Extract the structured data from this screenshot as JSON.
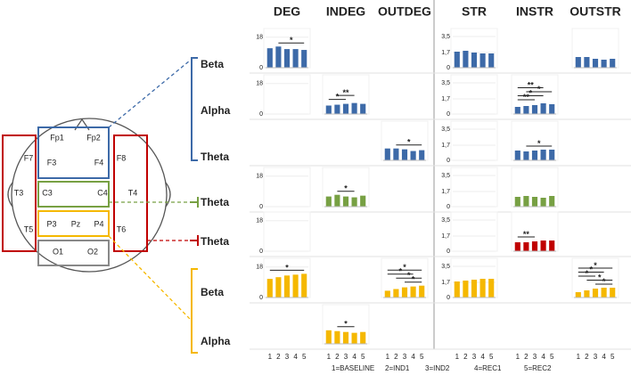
{
  "columns": [
    "DEG",
    "INDEG",
    "OUTDEG",
    "STR",
    "INSTR",
    "OUTSTR"
  ],
  "bands": [
    {
      "label": "Beta"
    },
    {
      "label": "Alpha"
    },
    {
      "label": "Theta"
    },
    {
      "label": "Theta"
    },
    {
      "label": "Theta"
    },
    {
      "label": "Beta"
    },
    {
      "label": "Alpha"
    }
  ],
  "x_categories": [
    "1",
    "2",
    "3",
    "4",
    "5"
  ],
  "legend": [
    "1=BASELINE",
    "2=IND1",
    "3=IND2",
    "4=REC1",
    "5=REC2"
  ],
  "electrodes": [
    "Fp1",
    "Fp2",
    "F7",
    "F3",
    "F4",
    "F8",
    "T3",
    "C3",
    "C4",
    "T4",
    "T5",
    "P3",
    "Pz",
    "P4",
    "T6",
    "O1",
    "O2"
  ],
  "chart_data": [
    {
      "type": "bar",
      "color": "#3d6aa8",
      "values": [
        11.5,
        12.5,
        11,
        11,
        10.5
      ],
      "ylim": [
        0,
        20
      ],
      "yticks": [
        0,
        18
      ],
      "sig": [
        {
          "label": "*",
          "from": 2,
          "to": 5
        }
      ]
    },
    null,
    null,
    {
      "type": "bar",
      "color": "#3d6aa8",
      "values": [
        1.8,
        1.9,
        1.7,
        1.6,
        1.6
      ],
      "ylim": [
        0,
        3.8
      ],
      "yticks": [
        0,
        {
          "value": 1.7,
          "label": "1,7"
        },
        {
          "value": 3.5,
          "label": "3,5"
        }
      ]
    },
    null,
    {
      "type": "bar",
      "color": "#3d6aa8",
      "values": [
        1.2,
        1.2,
        1.0,
        0.9,
        1.0
      ],
      "ylim": [
        0,
        3.8
      ]
    },
    {
      "type": "bar",
      "ylim": [
        0,
        20
      ],
      "yticks": [
        0,
        18
      ]
    },
    {
      "type": "bar",
      "color": "#3d6aa8",
      "values": [
        5,
        5.5,
        6,
        6.5,
        6
      ],
      "ylim": [
        0,
        20
      ],
      "sig": [
        {
          "label": "**",
          "from": 2,
          "to": 4
        },
        {
          "label": "*",
          "from": 1,
          "to": 3
        }
      ]
    },
    null,
    {
      "type": "bar",
      "ylim": [
        0,
        3.8
      ],
      "yticks": [
        0,
        {
          "value": 1.7,
          "label": "1,7"
        },
        {
          "value": 3.5,
          "label": "3,5"
        }
      ]
    },
    {
      "type": "bar",
      "color": "#3d6aa8",
      "values": [
        0.8,
        0.9,
        1.0,
        1.2,
        1.1
      ],
      "ylim": [
        0,
        3.8
      ],
      "sig": [
        {
          "label": "**",
          "from": 1,
          "to": 4
        },
        {
          "label": "*",
          "from": 2,
          "to": 5
        },
        {
          "label": "*",
          "from": 1,
          "to": 4
        },
        {
          "label": "**",
          "from": 1,
          "to": 3
        }
      ]
    },
    null,
    null,
    null,
    {
      "type": "bar",
      "color": "#3d6aa8",
      "values": [
        7,
        7,
        6.5,
        5.5,
        6
      ],
      "ylim": [
        0,
        20
      ],
      "sig": [
        {
          "label": "*",
          "from": 2,
          "to": 5
        }
      ]
    },
    {
      "type": "bar",
      "ylim": [
        0,
        3.8
      ],
      "yticks": [
        0,
        {
          "value": 1.7,
          "label": "1,7"
        },
        {
          "value": 3.5,
          "label": "3,5"
        }
      ]
    },
    {
      "type": "bar",
      "color": "#3d6aa8",
      "values": [
        1.1,
        1.0,
        1.1,
        1.2,
        1.2
      ],
      "ylim": [
        0,
        3.8
      ],
      "sig": [
        {
          "label": "*",
          "from": 2,
          "to": 5
        }
      ]
    },
    null,
    {
      "type": "bar",
      "ylim": [
        0,
        20
      ],
      "yticks": [
        0,
        18
      ]
    },
    {
      "type": "bar",
      "color": "#77a043",
      "values": [
        6,
        7,
        6,
        5.5,
        6.5
      ],
      "ylim": [
        0,
        20
      ],
      "sig": [
        {
          "label": "*",
          "from": 2,
          "to": 4
        }
      ]
    },
    null,
    {
      "type": "bar",
      "ylim": [
        0,
        3.8
      ],
      "yticks": [
        0,
        {
          "value": 1.7,
          "label": "1,7"
        },
        {
          "value": 3.5,
          "label": "3,5"
        }
      ]
    },
    {
      "type": "bar",
      "color": "#77a043",
      "values": [
        1.1,
        1.2,
        1.1,
        1.0,
        1.2
      ],
      "ylim": [
        0,
        3.8
      ]
    },
    null,
    {
      "type": "bar",
      "ylim": [
        0,
        20
      ],
      "yticks": [
        0,
        18
      ]
    },
    null,
    null,
    {
      "type": "bar",
      "ylim": [
        0,
        3.8
      ],
      "yticks": [
        0,
        {
          "value": 1.7,
          "label": "1,7"
        },
        {
          "value": 3.5,
          "label": "3,5"
        }
      ]
    },
    {
      "type": "bar",
      "color": "#c00000",
      "values": [
        1.0,
        1.0,
        1.1,
        1.2,
        1.2
      ],
      "ylim": [
        0,
        3.8
      ],
      "sig": [
        {
          "label": "**",
          "from": 1,
          "to": 3
        }
      ]
    },
    null,
    {
      "type": "bar",
      "color": "#f5b800",
      "values": [
        11,
        12,
        13,
        13.5,
        14
      ],
      "ylim": [
        0,
        20
      ],
      "yticks": [
        0,
        18
      ],
      "sig": [
        {
          "label": "*",
          "from": 1,
          "to": 5
        }
      ]
    },
    null,
    {
      "type": "bar",
      "color": "#f5b800",
      "values": [
        4,
        5,
        6,
        6.5,
        7
      ],
      "ylim": [
        0,
        20
      ],
      "sig": [
        {
          "label": "*",
          "from": 1,
          "to": 5
        },
        {
          "label": "*",
          "from": 1,
          "to": 4
        },
        {
          "label": "*",
          "from": 2,
          "to": 5
        },
        {
          "label": "*",
          "from": 3,
          "to": 5
        }
      ]
    },
    {
      "type": "bar",
      "color": "#f5b800",
      "values": [
        1.8,
        1.9,
        2.0,
        2.1,
        2.1
      ],
      "ylim": [
        0,
        3.8
      ],
      "yticks": [
        0,
        {
          "value": 1.7,
          "label": "1,7"
        },
        {
          "value": 3.5,
          "label": "3,5"
        }
      ]
    },
    null,
    {
      "type": "bar",
      "color": "#f5b800",
      "values": [
        0.6,
        0.8,
        1.0,
        1.1,
        1.1
      ],
      "ylim": [
        0,
        3.8
      ],
      "sig": [
        {
          "label": "*",
          "from": 1,
          "to": 5
        },
        {
          "label": "*",
          "from": 1,
          "to": 4
        },
        {
          "label": "*",
          "from": 1,
          "to": 3
        },
        {
          "label": "*",
          "from": 2,
          "to": 5
        },
        {
          "label": "*",
          "from": 3,
          "to": 5
        }
      ]
    },
    null,
    {
      "type": "bar",
      "color": "#f5b800",
      "values": [
        8,
        7.5,
        7,
        6.5,
        7
      ],
      "ylim": [
        0,
        20
      ],
      "sig": [
        {
          "label": "*",
          "from": 2,
          "to": 4
        }
      ]
    },
    null,
    null,
    null,
    null
  ]
}
